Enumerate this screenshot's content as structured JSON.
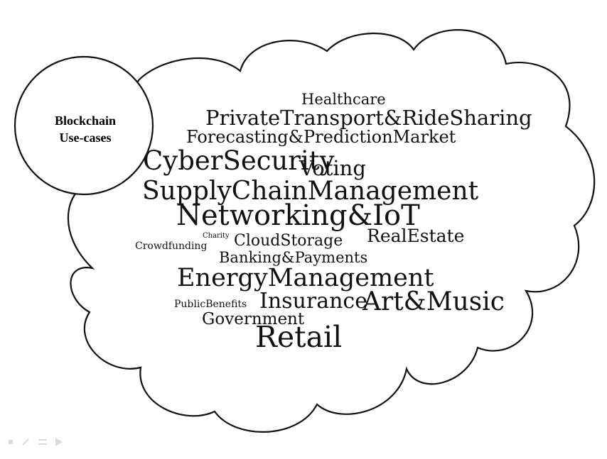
{
  "title": {
    "line1": "Blockchain",
    "line2": "Use-cases"
  },
  "words": [
    {
      "id": "healthcare",
      "text": "Healthcare"
    },
    {
      "id": "private-transport",
      "text": "PrivateTransport&RideSharing"
    },
    {
      "id": "forecasting",
      "text": "Forecasting&PredictionMarket"
    },
    {
      "id": "cybersecurity",
      "text": "CyberSecurity"
    },
    {
      "id": "voting",
      "text": "Voting"
    },
    {
      "id": "supply-chain",
      "text": "SupplyChainManagement"
    },
    {
      "id": "networking-iot",
      "text": "Networking&IoT"
    },
    {
      "id": "charity",
      "text": "Charity"
    },
    {
      "id": "crowdfunding",
      "text": "Crowdfunding"
    },
    {
      "id": "cloud-storage",
      "text": "CloudStorage"
    },
    {
      "id": "real-estate",
      "text": "RealEstate"
    },
    {
      "id": "banking-payments",
      "text": "Banking&Payments"
    },
    {
      "id": "energy-management",
      "text": "EnergyManagement"
    },
    {
      "id": "public-benefits",
      "text": "PublicBenefits"
    },
    {
      "id": "insurance",
      "text": "Insurance"
    },
    {
      "id": "art-music",
      "text": "Art&Music"
    },
    {
      "id": "government",
      "text": "Government"
    },
    {
      "id": "retail",
      "text": "Retail"
    }
  ],
  "controls": [
    {
      "icon": "square-icon"
    },
    {
      "icon": "pen-icon"
    },
    {
      "icon": "menu-icon"
    },
    {
      "icon": "arrow-right-icon"
    }
  ]
}
